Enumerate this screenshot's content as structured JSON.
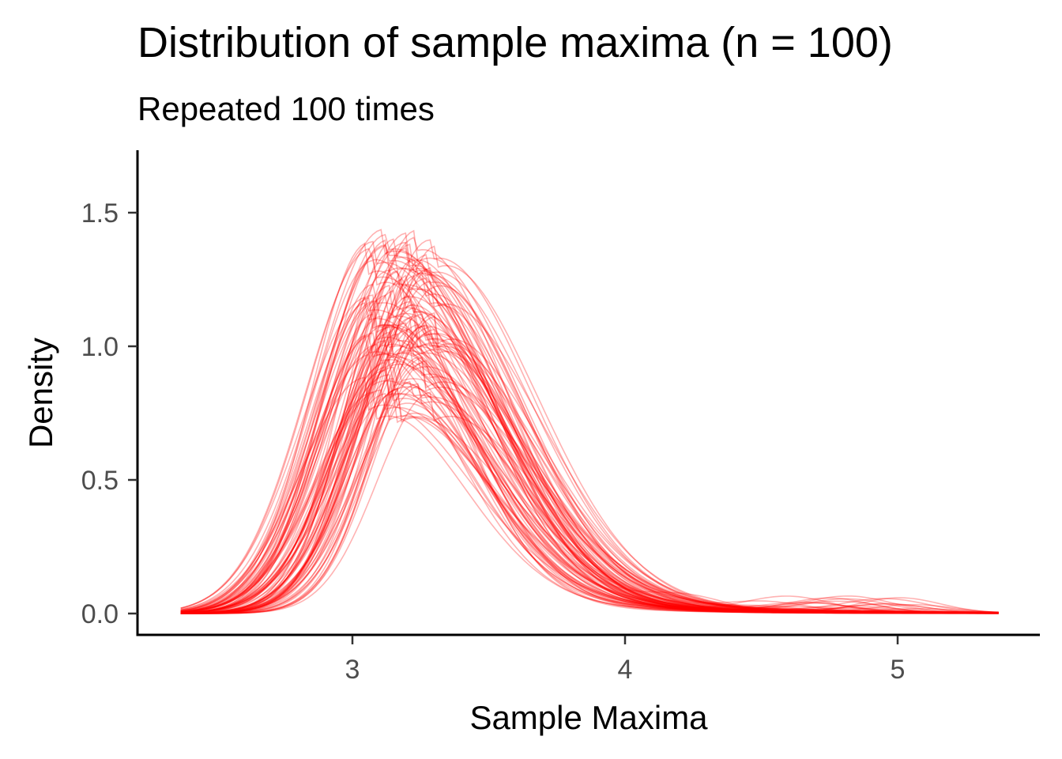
{
  "colors": {
    "curve": "#FF0000",
    "axis": "#000000",
    "tick_label": "#4D4D4D",
    "background": "#FFFFFF"
  },
  "chart_data": {
    "type": "line",
    "title": "Distribution of sample maxima (n = 100)",
    "subtitle": "Repeated 100 times",
    "xlabel": "Sample Maxima",
    "ylabel": "Density",
    "xlim": [
      2.2,
      5.5
    ],
    "ylim": [
      -0.08,
      1.72
    ],
    "x_ticks": [
      3,
      4,
      5
    ],
    "x_tick_labels": [
      "3",
      "4",
      "5"
    ],
    "y_ticks": [
      0,
      0.5,
      1,
      1.5
    ],
    "y_tick_labels": [
      "0.0",
      "0.5",
      "1.0",
      "1.5"
    ],
    "grid": false,
    "legend": "none",
    "line_alpha": 0.3,
    "n_curves": 100,
    "x_range": [
      2.37,
      5.37
    ],
    "representative_curve": {
      "name": "",
      "x": [
        2.4,
        2.6,
        2.8,
        3.0,
        3.1,
        3.2,
        3.3,
        3.4,
        3.6,
        3.8,
        4.0,
        4.4,
        5.0,
        5.37
      ],
      "y": [
        0.02,
        0.15,
        0.58,
        1.05,
        1.17,
        1.18,
        1.1,
        0.95,
        0.62,
        0.37,
        0.2,
        0.07,
        0.015,
        0.0
      ]
    },
    "peak_range": {
      "x": [
        3.0,
        3.3
      ],
      "y": [
        0.82,
        1.65
      ]
    }
  }
}
